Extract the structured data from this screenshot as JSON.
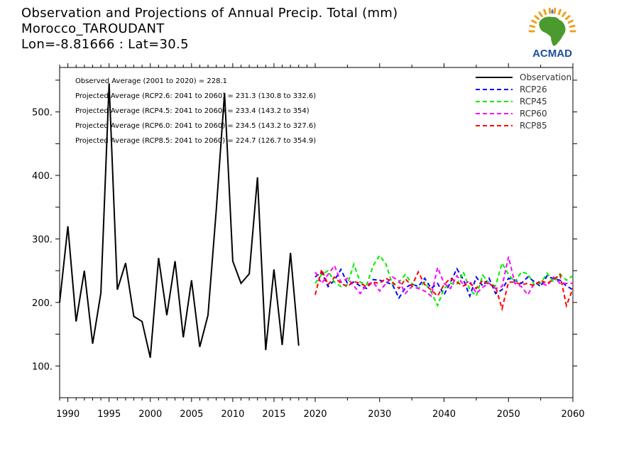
{
  "title": {
    "line1": "Observation and Projections of Annual Precip. Total (mm)",
    "line2": "Morocco_TAROUDANT",
    "line3": "Lon=-8.81666 : Lat=30.5"
  },
  "logo": {
    "text": "ACMAD",
    "icon": "africa-sun-logo-icon",
    "color_africa": "#4a9a2e",
    "color_sun": "#f0a020",
    "color_text": "#1f4e9c",
    "color_drop": "#2d7fd8"
  },
  "chart_data": {
    "type": "line",
    "title": "Observation and Projections of Annual Precip. Total (mm)",
    "xlim": [
      1989,
      2060
    ],
    "ylim": [
      50,
      570
    ],
    "x_ticks": [
      1990,
      1995,
      2000,
      2005,
      2010,
      2015,
      2020,
      2030,
      2040,
      2050,
      2060
    ],
    "y_ticks": [
      100,
      200,
      300,
      400,
      500
    ],
    "y_tick_labels": [
      "100.",
      "200.",
      "300.",
      "400.",
      "500."
    ],
    "annotations": [
      "Observed Average (2001 to 2020) = 228.1",
      "Projected Average (RCP2.6: 2041 to 2060) = 231.3 (130.8 to 332.6)",
      "Projected Average (RCP4.5: 2041 to 2060) = 233.4 (143.2 to 354)",
      "Projected Average (RCP6.0: 2041 to 2060) = 234.5 (143.2 to 327.6)",
      "Projected Average (RCP8.5: 2041 to 2060) = 224.7 (126.7 to 354.9)"
    ],
    "legend_position": "top-right",
    "series": [
      {
        "name": "Observation",
        "color": "#000000",
        "dash": "solid",
        "x": [
          1989,
          1990,
          1991,
          1992,
          1993,
          1994,
          1995,
          1996,
          1997,
          1998,
          1999,
          2000,
          2001,
          2002,
          2003,
          2004,
          2005,
          2006,
          2007,
          2008,
          2009,
          2010,
          2011,
          2012,
          2013,
          2014,
          2015,
          2016,
          2017,
          2018,
          2019
        ],
        "values": [
          200,
          320,
          170,
          250,
          135,
          215,
          545,
          220,
          262,
          178,
          170,
          113,
          270,
          180,
          265,
          145,
          235,
          130,
          180,
          345,
          530,
          265,
          230,
          245,
          397,
          125,
          252,
          133,
          278,
          132,
          null
        ]
      },
      {
        "name": "RCP26",
        "color": "#0000ff",
        "dash": "dashed",
        "x": [
          2020,
          2021,
          2022,
          2023,
          2024,
          2025,
          2026,
          2027,
          2028,
          2029,
          2030,
          2031,
          2032,
          2033,
          2034,
          2035,
          2036,
          2037,
          2038,
          2039,
          2040,
          2041,
          2042,
          2043,
          2044,
          2045,
          2046,
          2047,
          2048,
          2049,
          2050,
          2051,
          2052,
          2053,
          2054,
          2055,
          2056,
          2057,
          2058,
          2059,
          2060
        ],
        "values": [
          240,
          248,
          225,
          235,
          252,
          230,
          232,
          226,
          222,
          236,
          235,
          232,
          228,
          207,
          223,
          229,
          225,
          238,
          222,
          230,
          212,
          232,
          253,
          236,
          210,
          240,
          226,
          238,
          214,
          220,
          238,
          235,
          230,
          240,
          233,
          225,
          242,
          237,
          235,
          226,
          220
        ]
      },
      {
        "name": "RCP45",
        "color": "#00ee00",
        "dash": "dashed",
        "x": [
          2020,
          2021,
          2022,
          2023,
          2024,
          2025,
          2026,
          2027,
          2028,
          2029,
          2030,
          2031,
          2032,
          2033,
          2034,
          2035,
          2036,
          2037,
          2038,
          2039,
          2040,
          2041,
          2042,
          2043,
          2044,
          2045,
          2046,
          2047,
          2048,
          2049,
          2050,
          2051,
          2052,
          2053,
          2054,
          2055,
          2056,
          2057,
          2058,
          2059,
          2060
        ],
        "values": [
          230,
          244,
          250,
          232,
          225,
          228,
          260,
          232,
          228,
          258,
          274,
          260,
          228,
          232,
          244,
          230,
          222,
          232,
          216,
          195,
          222,
          230,
          228,
          248,
          220,
          210,
          243,
          230,
          226,
          262,
          244,
          232,
          248,
          245,
          228,
          230,
          246,
          232,
          245,
          235,
          242
        ]
      },
      {
        "name": "RCP60",
        "color": "#ff00ff",
        "dash": "dashed",
        "x": [
          2020,
          2021,
          2022,
          2023,
          2024,
          2025,
          2026,
          2027,
          2028,
          2029,
          2030,
          2031,
          2032,
          2033,
          2034,
          2035,
          2036,
          2037,
          2038,
          2039,
          2040,
          2041,
          2042,
          2043,
          2044,
          2045,
          2046,
          2047,
          2048,
          2049,
          2050,
          2051,
          2052,
          2053,
          2054,
          2055,
          2056,
          2057,
          2058,
          2059,
          2060
        ],
        "values": [
          248,
          230,
          244,
          258,
          232,
          238,
          226,
          214,
          228,
          232,
          218,
          230,
          240,
          234,
          214,
          225,
          222,
          218,
          210,
          255,
          230,
          222,
          242,
          228,
          234,
          214,
          224,
          230,
          222,
          225,
          272,
          230,
          225,
          212,
          230,
          232,
          226,
          240,
          230,
          230,
          230
        ]
      },
      {
        "name": "RCP85",
        "color": "#ff0000",
        "dash": "dashed",
        "x": [
          2020,
          2021,
          2022,
          2023,
          2024,
          2025,
          2026,
          2027,
          2028,
          2029,
          2030,
          2031,
          2032,
          2033,
          2034,
          2035,
          2036,
          2037,
          2038,
          2039,
          2040,
          2041,
          2042,
          2043,
          2044,
          2045,
          2046,
          2047,
          2048,
          2049,
          2050,
          2051,
          2052,
          2053,
          2054,
          2055,
          2056,
          2057,
          2058,
          2059,
          2060
        ],
        "values": [
          212,
          252,
          228,
          240,
          230,
          225,
          233,
          230,
          225,
          232,
          230,
          238,
          232,
          222,
          237,
          226,
          248,
          228,
          220,
          210,
          228,
          238,
          232,
          226,
          230,
          222,
          235,
          228,
          225,
          190,
          232,
          232,
          228,
          230,
          226,
          235,
          230,
          236,
          244,
          195,
          222
        ]
      }
    ]
  }
}
